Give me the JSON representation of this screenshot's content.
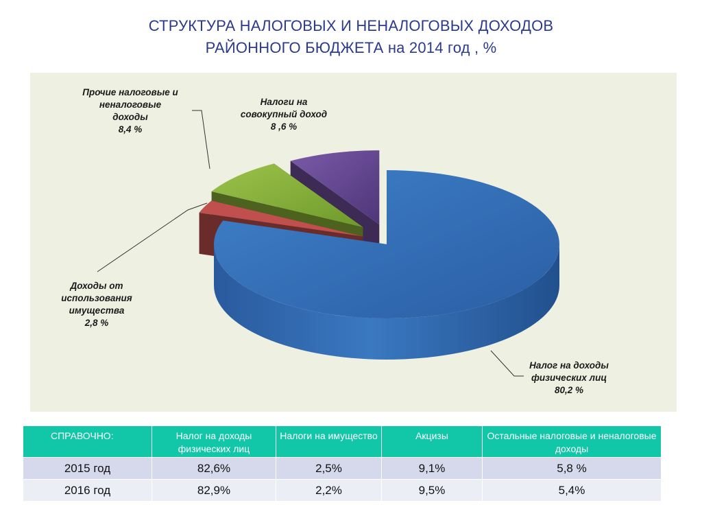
{
  "title": {
    "line1": "СТРУКТУРА НАЛОГОВЫХ И НЕНАЛОГОВЫХ ДОХОДОВ",
    "line2": "РАЙОННОГО БЮДЖЕТА  на 2014 год , %"
  },
  "chart_data": {
    "type": "pie",
    "title": "СТРУКТУРА НАЛОГОВЫХ И НЕНАЛОГОВЫХ ДОХОДОВ РАЙОННОГО БЮДЖЕТА на 2014 год , %",
    "slices": [
      {
        "label_lines": [
          "Налог на доходы",
          "физических лиц"
        ],
        "value": 80.2,
        "value_label": "80,2 %",
        "color": "#2f6db5"
      },
      {
        "label_lines": [
          "Доходы от",
          "использования",
          "имущества"
        ],
        "value": 2.8,
        "value_label": "2,8 %",
        "color": "#c0504d"
      },
      {
        "label_lines": [
          "Прочие налоговые и",
          "неналоговые",
          "доходы"
        ],
        "value": 8.4,
        "value_label": "8,4 %",
        "color": "#8db33a"
      },
      {
        "label_lines": [
          "Налоги на",
          "совокупный доход"
        ],
        "value": 8.6,
        "value_label": "8 ,6 %",
        "color": "#6e4f9a"
      }
    ]
  },
  "reference_table": {
    "header": [
      "СПРАВОЧНО:",
      "Налог на доходы физических лиц",
      "Налоги на имущество",
      "Акцизы",
      "Остальные налоговые и неналоговые доходы"
    ],
    "rows": [
      [
        "2015 год",
        "82,6%",
        "2,5%",
        "9,1%",
        "5,8 %"
      ],
      [
        "2016 год",
        "82,9%",
        "2,2%",
        "9,5%",
        "5,4%"
      ]
    ]
  },
  "colors": {
    "title": "#2b3a8c",
    "panel_background": "#eef0e2",
    "table_header": "#12c6a8",
    "row_odd": "#d6d9ec",
    "row_even": "#eceef6"
  }
}
